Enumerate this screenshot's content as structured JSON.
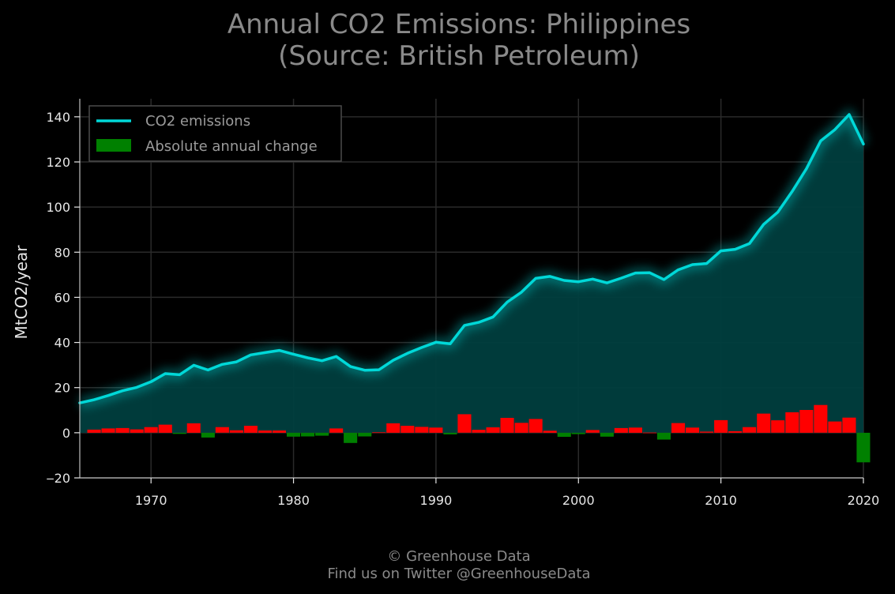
{
  "chart_data": {
    "type": "line",
    "title": "Annual CO2 Emissions: Philippines",
    "subtitle": "(Source: British Petroleum)",
    "ylabel": "MtCO2/year",
    "xlabel": "",
    "xlim": [
      1965,
      2020
    ],
    "ylim": [
      -20,
      148
    ],
    "x_ticks": [
      1970,
      1980,
      1990,
      2000,
      2010,
      2020
    ],
    "y_ticks": [
      -20,
      0,
      20,
      40,
      60,
      80,
      100,
      120,
      140
    ],
    "y_tick_labels": [
      "‒20",
      "0",
      "20",
      "40",
      "60",
      "80",
      "100",
      "120",
      "140"
    ],
    "grid": true,
    "legend_position": "top-left",
    "colors": {
      "line": "#00d8d8",
      "area": "#003e3e",
      "bar_positive": "#ff0000",
      "bar_negative": "#008000",
      "background": "#000000"
    },
    "series": [
      {
        "name": "CO2 emissions",
        "x": [
          1965,
          1966,
          1967,
          1968,
          1969,
          1970,
          1971,
          1972,
          1973,
          1974,
          1975,
          1976,
          1977,
          1978,
          1979,
          1980,
          1981,
          1982,
          1983,
          1984,
          1985,
          1986,
          1987,
          1988,
          1989,
          1990,
          1991,
          1992,
          1993,
          1994,
          1995,
          1996,
          1997,
          1998,
          1999,
          2000,
          2001,
          2002,
          2003,
          2004,
          2005,
          2006,
          2007,
          2008,
          2009,
          2010,
          2011,
          2012,
          2013,
          2014,
          2015,
          2016,
          2017,
          2018,
          2019,
          2020
        ],
        "values": [
          13.2,
          14.6,
          16.5,
          18.6,
          20.1,
          22.6,
          26.2,
          25.7,
          29.9,
          27.8,
          30.3,
          31.4,
          34.5,
          35.5,
          36.5,
          34.8,
          33.2,
          31.9,
          33.8,
          29.3,
          27.7,
          27.9,
          32.1,
          35.2,
          37.8,
          40.1,
          39.4,
          47.6,
          48.9,
          51.3,
          57.9,
          62.3,
          68.4,
          69.3,
          67.5,
          66.9,
          68.1,
          66.4,
          68.5,
          70.8,
          70.9,
          67.9,
          72.2,
          74.5,
          75.0,
          80.6,
          81.3,
          83.8,
          92.3,
          97.8,
          106.9,
          117.0,
          129.3,
          134.3,
          141.0,
          127.9
        ]
      },
      {
        "name": "Absolute annual change",
        "x": [
          1966,
          1967,
          1968,
          1969,
          1970,
          1971,
          1972,
          1973,
          1974,
          1975,
          1976,
          1977,
          1978,
          1979,
          1980,
          1981,
          1982,
          1983,
          1984,
          1985,
          1986,
          1987,
          1988,
          1989,
          1990,
          1991,
          1992,
          1993,
          1994,
          1995,
          1996,
          1997,
          1998,
          1999,
          2000,
          2001,
          2002,
          2003,
          2004,
          2005,
          2006,
          2007,
          2008,
          2009,
          2010,
          2011,
          2012,
          2013,
          2014,
          2015,
          2016,
          2017,
          2018,
          2019,
          2020
        ],
        "values": [
          1.4,
          1.9,
          2.1,
          1.5,
          2.5,
          3.6,
          -0.5,
          4.2,
          -2.1,
          2.5,
          1.1,
          3.1,
          1.0,
          1.0,
          -1.7,
          -1.6,
          -1.3,
          1.9,
          -4.5,
          -1.6,
          0.2,
          4.2,
          3.1,
          2.6,
          2.3,
          -0.7,
          8.2,
          1.3,
          2.4,
          6.6,
          4.4,
          6.1,
          0.9,
          -1.8,
          -0.6,
          1.2,
          -1.7,
          2.1,
          2.3,
          0.1,
          -3.0,
          4.3,
          2.3,
          0.5,
          5.6,
          0.7,
          2.5,
          8.5,
          5.5,
          9.1,
          10.1,
          12.3,
          5.0,
          6.7,
          -13.1
        ]
      }
    ]
  },
  "footer": {
    "line1": "© Greenhouse Data",
    "line2": "Find us on Twitter @GreenhouseData"
  }
}
